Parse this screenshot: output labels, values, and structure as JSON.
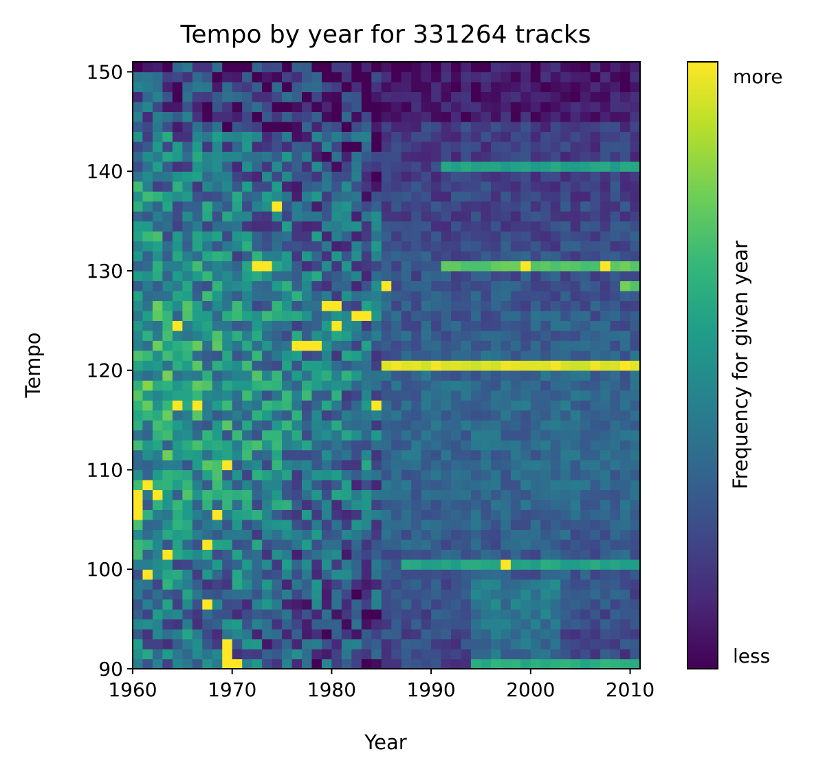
{
  "chart_data": {
    "type": "heatmap",
    "title": "Tempo by year for 331264 tracks",
    "xlabel": "Year",
    "ylabel": "Tempo",
    "xlim": [
      1960,
      2011
    ],
    "ylim": [
      90,
      151
    ],
    "x_bin_width": 1,
    "y_bin_width": 1,
    "xticks": [
      1960,
      1970,
      1980,
      1990,
      2000,
      2010
    ],
    "yticks": [
      90,
      100,
      110,
      120,
      130,
      140,
      150
    ],
    "colormap": "viridis",
    "colors": [
      "#440154",
      "#482878",
      "#3e4989",
      "#31688e",
      "#26828e",
      "#1f9e89",
      "#35b779",
      "#6ece58",
      "#b5de2b",
      "#fde725"
    ],
    "colorbar": {
      "label": "Frequency for given year",
      "high_label": "more",
      "low_label": "less"
    },
    "grid": false,
    "features": {
      "seed": 331264,
      "stripes_after_1985": [
        {
          "tempo_bin": 120,
          "start_year": 1985,
          "end_year": 2011,
          "level": 1.0
        },
        {
          "tempo_bin": 130,
          "start_year": 1991,
          "end_year": 2011,
          "level": 0.78
        },
        {
          "tempo_bin": 140,
          "start_year": 1991,
          "end_year": 2011,
          "level": 0.62
        },
        {
          "tempo_bin": 128,
          "start_year": 2009,
          "end_year": 2011,
          "level": 0.8
        },
        {
          "tempo_bin": 100,
          "start_year": 1987,
          "end_year": 2011,
          "level": 0.62
        },
        {
          "tempo_bin": 90,
          "start_year": 1994,
          "end_year": 2011,
          "level": 0.66
        }
      ],
      "bright_cells": [
        {
          "year": 1960,
          "tempo": 105
        },
        {
          "year": 1960,
          "tempo": 106
        },
        {
          "year": 1960,
          "tempo": 107
        },
        {
          "year": 1961,
          "tempo": 108
        },
        {
          "year": 1962,
          "tempo": 107
        },
        {
          "year": 1961,
          "tempo": 99
        },
        {
          "year": 1963,
          "tempo": 101
        },
        {
          "year": 1964,
          "tempo": 116
        },
        {
          "year": 1966,
          "tempo": 116
        },
        {
          "year": 1964,
          "tempo": 124
        },
        {
          "year": 1967,
          "tempo": 96
        },
        {
          "year": 1967,
          "tempo": 102
        },
        {
          "year": 1968,
          "tempo": 105
        },
        {
          "year": 1969,
          "tempo": 90
        },
        {
          "year": 1969,
          "tempo": 91
        },
        {
          "year": 1969,
          "tempo": 92
        },
        {
          "year": 1970,
          "tempo": 90
        },
        {
          "year": 1969,
          "tempo": 110
        },
        {
          "year": 1972,
          "tempo": 130
        },
        {
          "year": 1973,
          "tempo": 130
        },
        {
          "year": 1974,
          "tempo": 136
        },
        {
          "year": 1976,
          "tempo": 122
        },
        {
          "year": 1977,
          "tempo": 122
        },
        {
          "year": 1978,
          "tempo": 122
        },
        {
          "year": 1979,
          "tempo": 126
        },
        {
          "year": 1980,
          "tempo": 126
        },
        {
          "year": 1980,
          "tempo": 124
        },
        {
          "year": 1982,
          "tempo": 125
        },
        {
          "year": 1983,
          "tempo": 125
        },
        {
          "year": 1984,
          "tempo": 116
        },
        {
          "year": 1985,
          "tempo": 128
        },
        {
          "year": 1999,
          "tempo": 130
        },
        {
          "year": 2007,
          "tempo": 130
        },
        {
          "year": 1997,
          "tempo": 100
        }
      ]
    }
  }
}
